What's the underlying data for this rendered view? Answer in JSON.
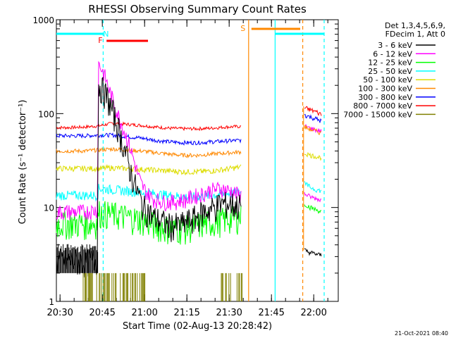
{
  "chart_data": {
    "type": "line",
    "title": "RHESSI Observing Summary Count Rates",
    "xlabel": "Start Time (02-Aug-13 20:28:42)",
    "ylabel": "Count Rate (s⁻¹ detector⁻¹)",
    "ylog": true,
    "xlim_minutes": [
      0,
      100
    ],
    "ylim": [
      1,
      1000
    ],
    "x_ticks": [
      {
        "label": "20:30",
        "t": 1.3
      },
      {
        "label": "20:45",
        "t": 16.3
      },
      {
        "label": "21:00",
        "t": 31.3
      },
      {
        "label": "21:15",
        "t": 46.3
      },
      {
        "label": "21:30",
        "t": 61.3
      },
      {
        "label": "21:45",
        "t": 76.3
      },
      {
        "label": "22:00",
        "t": 91.3
      }
    ],
    "y_ticks": [
      {
        "label": "1",
        "v": 1
      },
      {
        "label": "10",
        "v": 10
      },
      {
        "label": "100",
        "v": 100
      },
      {
        "label": "1000",
        "v": 1000
      }
    ],
    "legend": {
      "header": [
        "Det 1,3,4,5,6,9,",
        "FDecim 1, Att 0"
      ],
      "placement": "right"
    },
    "series": [
      {
        "name": "3 - 6 keV",
        "color": "#000000",
        "x": [
          0,
          10,
          14.7,
          15,
          16,
          17,
          18,
          19,
          20,
          21,
          22,
          23,
          24,
          25,
          26,
          27,
          28,
          29,
          30,
          31,
          32,
          33,
          34,
          36,
          38,
          40,
          42,
          44,
          46,
          48,
          50,
          52,
          54,
          56,
          58,
          60,
          62,
          64,
          65.5
        ],
        "y": [
          2.7,
          2.7,
          2.8,
          200,
          190,
          170,
          150,
          125,
          105,
          85,
          70,
          55,
          44,
          34,
          26,
          21,
          17,
          14,
          11.5,
          10,
          9.5,
          9,
          8,
          7.5,
          7,
          6.5,
          6.5,
          6.5,
          7,
          7.5,
          8,
          9,
          9.5,
          10,
          11,
          11,
          11,
          10.5,
          10.5
        ]
      },
      {
        "name": "6 - 12 keV",
        "color": "#ff00ff",
        "x": [
          0,
          10,
          14.7,
          15,
          16,
          17,
          18,
          19,
          20,
          21,
          22,
          23,
          24,
          25,
          26,
          27,
          28,
          29,
          30,
          31,
          32,
          33,
          34,
          36,
          38,
          40,
          42,
          44,
          46,
          48,
          50,
          52,
          54,
          56,
          58,
          60,
          62,
          64,
          65.5
        ],
        "y": [
          9,
          9,
          9.5,
          340,
          300,
          260,
          210,
          170,
          140,
          115,
          95,
          80,
          66,
          55,
          45,
          36,
          28,
          22,
          18,
          16,
          14.5,
          13.5,
          12.5,
          12,
          11.5,
          11.5,
          11.5,
          12,
          12,
          13,
          13.5,
          14,
          15,
          15.5,
          16,
          15.5,
          15,
          14,
          13.5
        ]
      },
      {
        "name": "12 - 25 keV",
        "color": "#00ff00",
        "x": [
          0,
          5,
          10,
          14.7,
          15,
          20,
          25,
          30,
          35,
          40,
          45,
          50,
          55,
          60,
          65.5
        ],
        "y": [
          6.8,
          6.8,
          6.8,
          7,
          9,
          8.5,
          8,
          7.5,
          6.5,
          6,
          6,
          6.5,
          7,
          7.5,
          8
        ]
      },
      {
        "name": "25 - 50 keV",
        "color": "#00ffff",
        "x": [
          0,
          5,
          10,
          14.7,
          15,
          20,
          25,
          30,
          35,
          40,
          45,
          50,
          55,
          60,
          65.5
        ],
        "y": [
          13.5,
          13.5,
          13.5,
          13.5,
          16,
          15.5,
          15,
          14.5,
          14,
          13.5,
          13,
          13,
          13.5,
          14,
          14.5
        ]
      },
      {
        "name": "50 - 100 keV",
        "color": "#dddd00",
        "x": [
          0,
          5,
          10,
          15,
          20,
          25,
          30,
          35,
          40,
          45,
          50,
          55,
          60,
          65.5
        ],
        "y": [
          26,
          26,
          26,
          26,
          26.5,
          26,
          25.5,
          25,
          24.5,
          24,
          24,
          24.5,
          25.5,
          27
        ]
      },
      {
        "name": "100 - 300 keV",
        "color": "#ff8800",
        "x": [
          0,
          5,
          10,
          15,
          20,
          25,
          30,
          35,
          40,
          45,
          50,
          55,
          60,
          65.5
        ],
        "y": [
          40,
          40,
          40,
          41,
          42,
          41,
          40,
          38.5,
          37,
          36,
          36,
          37,
          38,
          39
        ]
      },
      {
        "name": "300 - 800 keV",
        "color": "#0000ff",
        "x": [
          0,
          5,
          10,
          15,
          20,
          25,
          30,
          35,
          40,
          45,
          50,
          55,
          60,
          65.5
        ],
        "y": [
          58,
          58,
          58,
          59,
          59,
          57,
          55,
          52,
          50,
          49,
          49,
          50,
          51,
          52
        ]
      },
      {
        "name": "800 - 7000 keV",
        "color": "#ff0000",
        "x": [
          0,
          5,
          10,
          15,
          20,
          25,
          30,
          35,
          40,
          45,
          50,
          55,
          60,
          65.5
        ],
        "y": [
          71,
          71,
          72,
          74,
          79,
          77,
          75,
          72,
          70,
          69,
          69,
          70,
          72,
          73
        ]
      },
      {
        "name": "7000 - 15000 keV",
        "color": "#808000",
        "x": [],
        "y": []
      }
    ],
    "late_series": [
      {
        "color": "#ff0000",
        "x": [
          88,
          90,
          92,
          94
        ],
        "y": [
          115,
          110,
          105,
          98
        ]
      },
      {
        "color": "#0000ff",
        "x": [
          88,
          90,
          92,
          94
        ],
        "y": [
          97,
          92,
          88,
          83
        ]
      },
      {
        "color": "#ff00ff",
        "x": [
          88,
          90,
          92,
          94
        ],
        "y": [
          73,
          70,
          67,
          65
        ]
      },
      {
        "color": "#ff8800",
        "x": [
          88,
          90,
          92,
          94
        ],
        "y": [
          72,
          68,
          65,
          62
        ]
      },
      {
        "color": "#dddd00",
        "x": [
          88,
          90,
          92,
          94
        ],
        "y": [
          38,
          36,
          35,
          34
        ]
      },
      {
        "color": "#00ffff",
        "x": [
          88,
          90,
          92,
          94
        ],
        "y": [
          18,
          16.5,
          15.5,
          15
        ]
      },
      {
        "color": "#ff00ff",
        "x": [
          88,
          90,
          92,
          94
        ],
        "y": [
          14,
          13,
          12.5,
          12
        ]
      },
      {
        "color": "#00ff00",
        "x": [
          88,
          90,
          92,
          94
        ],
        "y": [
          11,
          10,
          9.5,
          9
        ]
      },
      {
        "color": "#000000",
        "x": [
          88,
          90,
          92,
          94
        ],
        "y": [
          3.5,
          3.3,
          3.2,
          3.1
        ]
      }
    ],
    "annotations": [
      {
        "label": "N",
        "color": "#00ffff"
      },
      {
        "label": "F",
        "color": "#ff0000"
      },
      {
        "label": "S",
        "color": "#ff8800"
      }
    ],
    "footer_timestamp": "21-Oct-2021 08:40"
  }
}
